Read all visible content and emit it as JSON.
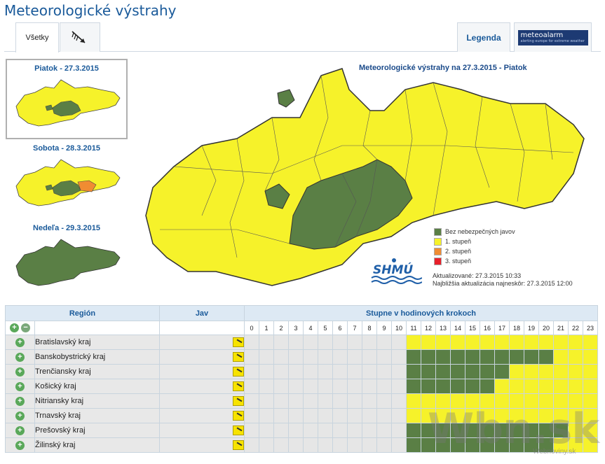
{
  "header": {
    "title": "Meteorologické výstrahy"
  },
  "tabs": [
    {
      "label": "Všetky"
    },
    {
      "label": "",
      "icon": "wind-arrow-icon"
    }
  ],
  "right_tabs": {
    "legend_label": "Legenda",
    "logo_text": "meteoalarm",
    "logo_subtext": "alerting europe for extreme weather"
  },
  "thumbnails": [
    {
      "title": "Piatok - 27.3.2015"
    },
    {
      "title": "Sobota - 28.3.2015"
    },
    {
      "title": "Nedeľa - 29.3.2015"
    }
  ],
  "map": {
    "title": "Meteorologické výstrahy na 27.3.2015 - Piatok"
  },
  "legend": [
    {
      "label": "Bez nebezpečných javov",
      "color": "#5a7f45"
    },
    {
      "label": "1. stupeň",
      "color": "#f6f22a"
    },
    {
      "label": "2. stupeň",
      "color": "#f08c32"
    },
    {
      "label": "3. stupeň",
      "color": "#e8202a"
    }
  ],
  "update": {
    "updated": "Aktualizované: 27.3.2015 10:33",
    "next": "Najbližšia aktualizácia najneskôr: 27.3.2015 12:00"
  },
  "shmu_logo": "SHMÚ",
  "table": {
    "col_region": "Región",
    "col_jav": "Jav",
    "col_hours": "Stupne v hodinových krokoch",
    "hours": [
      "0",
      "1",
      "2",
      "3",
      "4",
      "5",
      "6",
      "7",
      "8",
      "9",
      "10",
      "11",
      "12",
      "13",
      "14",
      "15",
      "16",
      "17",
      "18",
      "19",
      "20",
      "21",
      "22",
      "23"
    ],
    "rows": [
      {
        "name": "Bratislavský kraj",
        "levels": [
          0,
          0,
          0,
          0,
          0,
          0,
          0,
          0,
          0,
          0,
          0,
          1,
          1,
          1,
          1,
          1,
          1,
          1,
          1,
          1,
          1,
          1,
          1,
          1
        ]
      },
      {
        "name": "Banskobystrický kraj",
        "levels": [
          0,
          0,
          0,
          0,
          0,
          0,
          0,
          0,
          0,
          0,
          0,
          2,
          2,
          2,
          2,
          2,
          2,
          2,
          2,
          2,
          2,
          1,
          1,
          1
        ]
      },
      {
        "name": "Trenčiansky kraj",
        "levels": [
          0,
          0,
          0,
          0,
          0,
          0,
          0,
          0,
          0,
          0,
          0,
          2,
          2,
          2,
          2,
          2,
          2,
          2,
          1,
          1,
          1,
          1,
          1,
          1
        ]
      },
      {
        "name": "Košický kraj",
        "levels": [
          0,
          0,
          0,
          0,
          0,
          0,
          0,
          0,
          0,
          0,
          0,
          2,
          2,
          2,
          2,
          2,
          2,
          1,
          1,
          1,
          1,
          1,
          1,
          1
        ]
      },
      {
        "name": "Nitriansky kraj",
        "levels": [
          0,
          0,
          0,
          0,
          0,
          0,
          0,
          0,
          0,
          0,
          0,
          1,
          1,
          1,
          1,
          1,
          1,
          1,
          1,
          1,
          1,
          1,
          1,
          1
        ]
      },
      {
        "name": "Trnavský kraj",
        "levels": [
          0,
          0,
          0,
          0,
          0,
          0,
          0,
          0,
          0,
          0,
          0,
          1,
          1,
          1,
          1,
          1,
          1,
          1,
          1,
          1,
          1,
          1,
          1,
          1
        ]
      },
      {
        "name": "Prešovský kraj",
        "levels": [
          0,
          0,
          0,
          0,
          0,
          0,
          0,
          0,
          0,
          0,
          0,
          2,
          2,
          2,
          2,
          2,
          2,
          2,
          2,
          2,
          2,
          2,
          1,
          1
        ]
      },
      {
        "name": "Žilinský kraj",
        "levels": [
          0,
          0,
          0,
          0,
          0,
          0,
          0,
          0,
          0,
          0,
          0,
          2,
          2,
          2,
          2,
          2,
          2,
          2,
          2,
          2,
          2,
          1,
          1,
          1
        ]
      }
    ]
  },
  "colors": {
    "empty": "#e6e6e6",
    "yellow": "#f6f22a",
    "green": "#5a7f45"
  },
  "watermark": {
    "main": "Wbn.sk",
    "sub": "Webnoviny.sk"
  }
}
